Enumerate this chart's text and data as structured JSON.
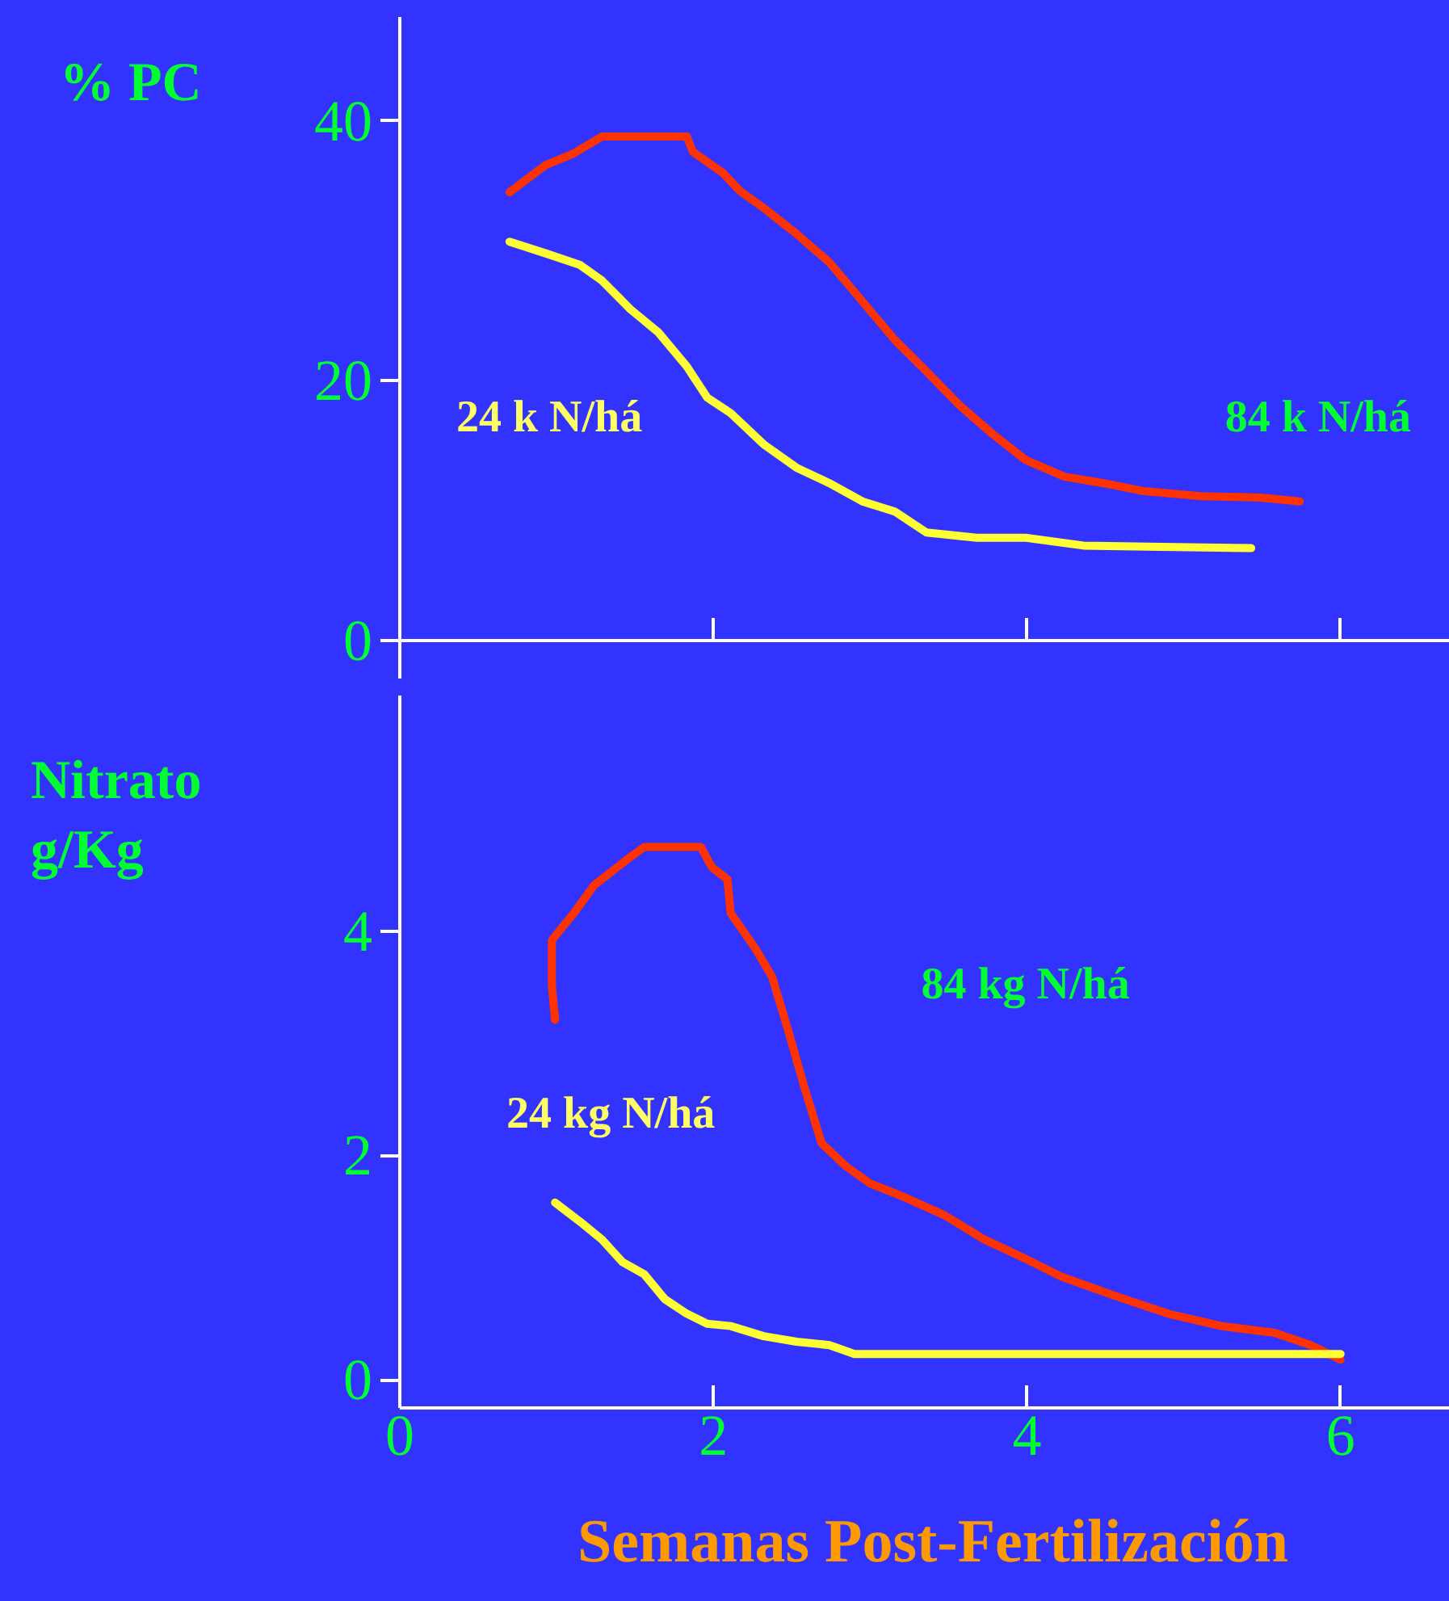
{
  "chart_data": [
    {
      "type": "line",
      "ylabel": "% PC",
      "xlim": [
        0,
        6.8
      ],
      "ylim": [
        -3,
        48
      ],
      "xticks": [
        2,
        4,
        6
      ],
      "yticks": [
        0,
        20,
        40
      ],
      "tick_labels": "y",
      "series": [
        {
          "color": "#ff3300",
          "x": [
            0.7,
            0.93,
            1.11,
            1.29,
            1.47,
            1.83,
            1.87,
            2.06,
            2.17,
            2.32,
            2.53,
            2.74,
            2.95,
            3.16,
            3.36,
            3.57,
            3.78,
            3.99,
            4.24,
            4.49,
            4.74,
            5.11,
            5.49,
            5.74
          ],
          "values": [
            34.5,
            36.6,
            37.5,
            38.8,
            38.8,
            38.8,
            37.6,
            36.0,
            34.6,
            33.3,
            31.3,
            29.1,
            26.1,
            23.1,
            20.7,
            18.1,
            15.9,
            13.9,
            12.6,
            12.1,
            11.5,
            11.1,
            11.0,
            10.7
          ]
        },
        {
          "color": "#ffff33",
          "x": [
            0.7,
            0.93,
            1.15,
            1.29,
            1.47,
            1.65,
            1.83,
            1.96,
            2.11,
            2.32,
            2.53,
            2.74,
            2.95,
            3.16,
            3.36,
            3.68,
            3.99,
            4.36,
            4.86,
            5.43
          ],
          "values": [
            30.7,
            29.8,
            28.9,
            27.7,
            25.5,
            23.7,
            21.1,
            18.7,
            17.5,
            15.1,
            13.3,
            12.1,
            10.7,
            9.9,
            8.3,
            7.9,
            7.9,
            7.3,
            7.2,
            7.1
          ]
        }
      ],
      "annotations": [
        "24 k N/há",
        "84 k N/há"
      ]
    },
    {
      "type": "line",
      "ylabel": "Nitrato g/Kg",
      "xlabel": "Semanas Post-Fertilización",
      "xlim": [
        0,
        6.8
      ],
      "ylim": [
        -0.25,
        6.1
      ],
      "xticks": [
        0,
        2,
        4,
        6
      ],
      "yticks": [
        0,
        2,
        4
      ],
      "series": [
        {
          "color": "#ff3300",
          "x": [
            0.99,
            0.97,
            0.97,
            1.11,
            1.24,
            1.47,
            1.56,
            1.92,
            1.99,
            2.09,
            2.11,
            2.27,
            2.375,
            2.48,
            2.58,
            2.69,
            2.84,
            3.0,
            3.2,
            3.47,
            3.73,
            3.99,
            4.22,
            4.56,
            4.9,
            5.24,
            5.58,
            5.81,
            6.0
          ],
          "values": [
            3.21,
            3.51,
            3.92,
            4.16,
            4.41,
            4.66,
            4.75,
            4.75,
            4.57,
            4.46,
            4.16,
            3.84,
            3.59,
            3.1,
            2.61,
            2.11,
            1.91,
            1.75,
            1.64,
            1.47,
            1.25,
            1.08,
            0.92,
            0.75,
            0.59,
            0.48,
            0.42,
            0.31,
            0.18
          ]
        },
        {
          "color": "#ffff33",
          "x": [
            0.99,
            1.15,
            1.29,
            1.42,
            1.56,
            1.69,
            1.83,
            1.96,
            2.11,
            2.32,
            2.53,
            2.74,
            2.9,
            3.47,
            4.56,
            6.0
          ],
          "values": [
            1.58,
            1.41,
            1.25,
            1.05,
            0.94,
            0.72,
            0.59,
            0.5,
            0.48,
            0.39,
            0.34,
            0.31,
            0.23,
            0.23,
            0.23,
            0.23
          ]
        }
      ],
      "annotations": [
        "24 kg N/há",
        "84 kg N/há"
      ]
    }
  ]
}
